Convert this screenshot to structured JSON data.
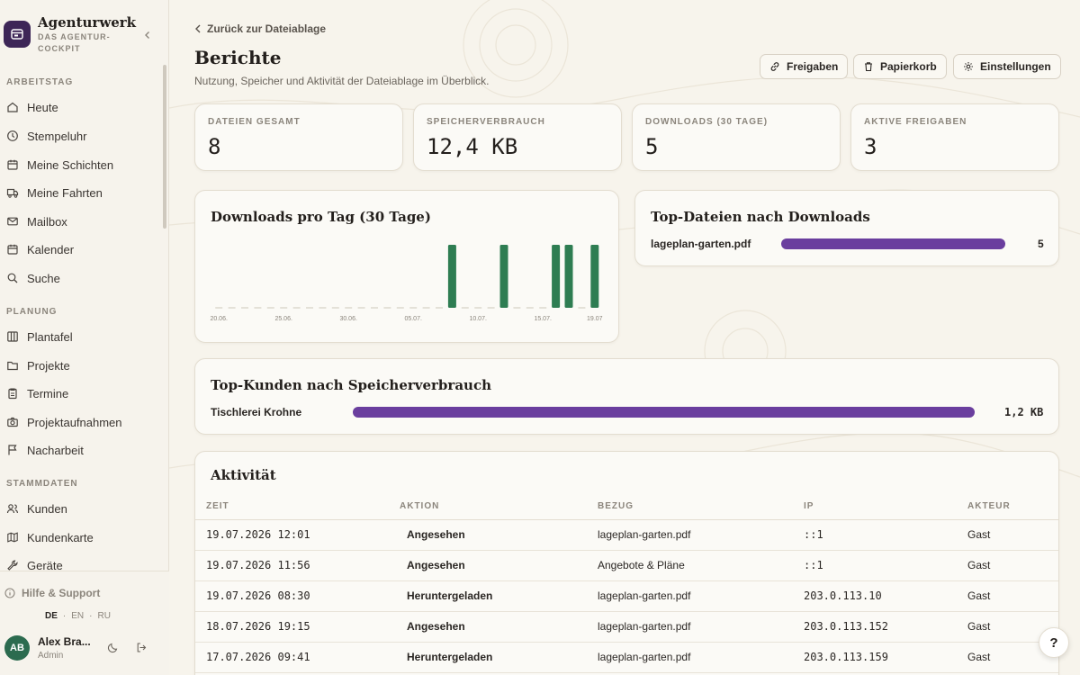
{
  "brand": {
    "name": "Agenturwerk",
    "tagline": "DAS AGENTUR-COCKPIT"
  },
  "sidebar": {
    "sections": [
      {
        "label": "ARBEITSTAG",
        "items": [
          {
            "label": "Heute",
            "icon": "home-icon"
          },
          {
            "label": "Stempeluhr",
            "icon": "clock-icon"
          },
          {
            "label": "Meine Schichten",
            "icon": "calendar-icon"
          },
          {
            "label": "Meine Fahrten",
            "icon": "truck-icon"
          },
          {
            "label": "Mailbox",
            "icon": "mail-icon"
          },
          {
            "label": "Kalender",
            "icon": "calendar-icon"
          },
          {
            "label": "Suche",
            "icon": "search-icon"
          }
        ]
      },
      {
        "label": "PLANUNG",
        "items": [
          {
            "label": "Plantafel",
            "icon": "board-icon"
          },
          {
            "label": "Projekte",
            "icon": "folder-icon"
          },
          {
            "label": "Termine",
            "icon": "clipboard-icon"
          },
          {
            "label": "Projektaufnahmen",
            "icon": "camera-icon"
          },
          {
            "label": "Nacharbeit",
            "icon": "flag-icon"
          }
        ]
      },
      {
        "label": "STAMMDATEN",
        "items": [
          {
            "label": "Kunden",
            "icon": "users-icon"
          },
          {
            "label": "Kundenkarte",
            "icon": "map-icon"
          },
          {
            "label": "Geräte",
            "icon": "wrench-icon"
          }
        ]
      }
    ],
    "footer": {
      "help_label": "Hilfe & Support",
      "languages": [
        "DE",
        "EN",
        "RU"
      ],
      "active_language": "DE",
      "user": {
        "initials": "AB",
        "name": "Alex Bra...",
        "role": "Admin"
      }
    }
  },
  "header": {
    "back_label": "Zurück zur Dateiablage",
    "title": "Berichte",
    "subtitle": "Nutzung, Speicher und Aktivität der Dateiablage im Überblick.",
    "actions": [
      {
        "label": "Freigaben",
        "icon": "link-icon"
      },
      {
        "label": "Papierkorb",
        "icon": "trash-icon"
      },
      {
        "label": "Einstellungen",
        "icon": "gear-icon"
      }
    ]
  },
  "stats": [
    {
      "label": "DATEIEN GESAMT",
      "value": "8"
    },
    {
      "label": "SPEICHERVERBRAUCH",
      "value": "12,4 KB"
    },
    {
      "label": "DOWNLOADS (30 TAGE)",
      "value": "5"
    },
    {
      "label": "AKTIVE FREIGABEN",
      "value": "3"
    }
  ],
  "downloads_chart": {
    "title": "Downloads pro Tag (30 Tage)"
  },
  "chart_data": {
    "type": "bar",
    "title": "Downloads pro Tag (30 Tage)",
    "tick_labels": [
      "20.06.",
      "25.06.",
      "30.06.",
      "05.07.",
      "10.07.",
      "15.07.",
      "19.07"
    ],
    "categories": [
      "20.06.",
      "21.06.",
      "22.06.",
      "23.06.",
      "24.06.",
      "25.06.",
      "26.06.",
      "27.06.",
      "28.06.",
      "29.06.",
      "30.06.",
      "01.07.",
      "02.07.",
      "03.07.",
      "04.07.",
      "05.07.",
      "06.07.",
      "07.07.",
      "08.07.",
      "09.07.",
      "10.07.",
      "11.07.",
      "12.07.",
      "13.07.",
      "14.07.",
      "15.07.",
      "16.07.",
      "17.07.",
      "18.07.",
      "19.07."
    ],
    "values": [
      0,
      0,
      0,
      0,
      0,
      0,
      0,
      0,
      0,
      0,
      0,
      0,
      0,
      0,
      0,
      0,
      0,
      0,
      1,
      0,
      0,
      0,
      1,
      0,
      0,
      0,
      1,
      1,
      0,
      1
    ],
    "ylim": [
      0,
      1
    ],
    "color": "#2e7d52"
  },
  "top_files": {
    "title": "Top-Dateien nach Downloads",
    "items": [
      {
        "name": "lageplan-garten.pdf",
        "value": "5",
        "fraction": 1.0
      }
    ]
  },
  "top_customers": {
    "title": "Top-Kunden nach Speicherverbrauch",
    "items": [
      {
        "name": "Tischlerei Krohne",
        "value": "1,2 KB",
        "fraction": 1.0
      }
    ]
  },
  "activity": {
    "title": "Aktivität",
    "columns": [
      "ZEIT",
      "AKTION",
      "BEZUG",
      "IP",
      "AKTEUR"
    ],
    "rows": [
      {
        "time": "19.07.2026 12:01",
        "action": "Angesehen",
        "ref": "lageplan-garten.pdf",
        "ip": "::1",
        "actor": "Gast"
      },
      {
        "time": "19.07.2026 11:56",
        "action": "Angesehen",
        "ref": "Angebote & Pläne",
        "ip": "::1",
        "actor": "Gast"
      },
      {
        "time": "19.07.2026 08:30",
        "action": "Heruntergeladen",
        "ref": "lageplan-garten.pdf",
        "ip": "203.0.113.10",
        "actor": "Gast"
      },
      {
        "time": "18.07.2026 19:15",
        "action": "Angesehen",
        "ref": "lageplan-garten.pdf",
        "ip": "203.0.113.152",
        "actor": "Gast"
      },
      {
        "time": "17.07.2026 09:41",
        "action": "Heruntergeladen",
        "ref": "lageplan-garten.pdf",
        "ip": "203.0.113.159",
        "actor": "Gast"
      }
    ]
  },
  "colors": {
    "accent_purple": "#6a3e9e",
    "accent_green": "#2e7d52",
    "brand_logo": "#3d2657"
  }
}
